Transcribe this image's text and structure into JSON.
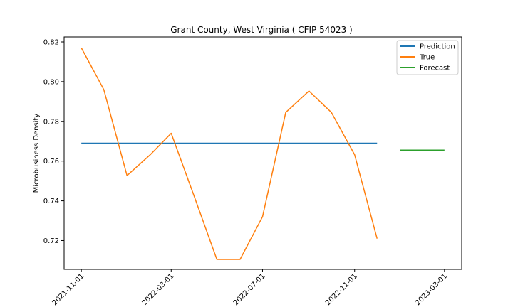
{
  "chart_data": {
    "type": "line",
    "title": "Grant County, West Virginia ( CFIP 54023 )",
    "xlabel": "",
    "ylabel": "Microbusiness Density",
    "x_ticks": [
      "2021-11-01",
      "2022-03-01",
      "2022-07-01",
      "2022-11-01",
      "2023-03-01"
    ],
    "x_range": [
      "2021-10-09",
      "2023-03-24"
    ],
    "ylim": [
      0.7055,
      0.8225
    ],
    "y_ticks": [
      0.72,
      0.74,
      0.76,
      0.78,
      0.8,
      0.82
    ],
    "y_tick_labels": [
      "0.72",
      "0.74",
      "0.76",
      "0.78",
      "0.80",
      "0.82"
    ],
    "grid": false,
    "legend_position": "top-right",
    "series": [
      {
        "name": "Prediction",
        "color": "#1f77b4",
        "x": [
          "2021-11-01",
          "2022-12-01"
        ],
        "values": [
          0.769,
          0.769
        ]
      },
      {
        "name": "True",
        "color": "#ff7f0e",
        "x": [
          "2021-11-01",
          "2021-12-01",
          "2022-01-01",
          "2022-02-01",
          "2022-03-01",
          "2022-04-01",
          "2022-05-01",
          "2022-06-01",
          "2022-07-01",
          "2022-08-01",
          "2022-09-01",
          "2022-10-01",
          "2022-11-01",
          "2022-12-01"
        ],
        "values": [
          0.817,
          0.796,
          0.7527,
          0.7632,
          0.774,
          0.742,
          0.7105,
          0.7105,
          0.732,
          0.7845,
          0.7953,
          0.7845,
          0.7632,
          0.721
        ]
      },
      {
        "name": "Forecast",
        "color": "#2ca02c",
        "x": [
          "2023-01-01",
          "2023-03-01"
        ],
        "values": [
          0.7655,
          0.7655
        ]
      }
    ]
  }
}
